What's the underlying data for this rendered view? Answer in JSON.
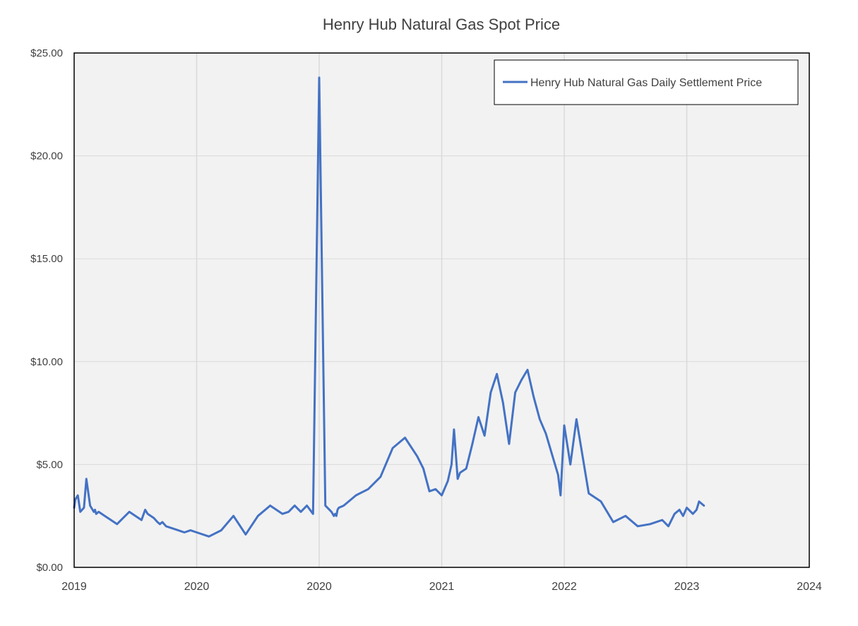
{
  "chart_data": {
    "type": "line",
    "title": "Henry Hub Natural Gas Spot Price",
    "xlabel": "",
    "ylabel": "",
    "xlim": [
      "2019",
      "2024"
    ],
    "ylim": [
      0,
      25
    ],
    "y_ticks": [
      "$0.00",
      "$5.00",
      "$10.00",
      "$15.00",
      "$20.00",
      "$25.00"
    ],
    "x_ticks": [
      "2019",
      "2020",
      "2020",
      "2021",
      "2022",
      "2023",
      "2024"
    ],
    "grid": "vertical and horizontal",
    "legend_position": "top-right",
    "colors": {
      "series": "#4472c4",
      "plot_bg": "#f2f2f2",
      "grid": "#d9d9d9"
    },
    "series": [
      {
        "name": "Henry Hub Natural Gas Daily Settlement Price",
        "x": [
          0.0,
          0.01,
          0.03,
          0.05,
          0.08,
          0.1,
          0.13,
          0.16,
          0.17,
          0.18,
          0.2,
          0.25,
          0.3,
          0.35,
          0.4,
          0.45,
          0.5,
          0.55,
          0.58,
          0.6,
          0.65,
          0.68,
          0.7,
          0.72,
          0.75,
          0.8,
          0.85,
          0.9,
          0.95,
          1.0,
          1.1,
          1.2,
          1.3,
          1.4,
          1.5,
          1.6,
          1.7,
          1.75,
          1.8,
          1.85,
          1.9,
          1.95,
          2.0,
          2.05,
          2.1,
          2.12,
          2.13,
          2.14,
          2.15,
          2.16,
          2.2,
          2.3,
          2.4,
          2.5,
          2.6,
          2.7,
          2.8,
          2.85,
          2.9,
          2.95,
          3.0,
          3.05,
          3.08,
          3.1,
          3.13,
          3.15,
          3.2,
          3.25,
          3.3,
          3.35,
          3.4,
          3.45,
          3.5,
          3.55,
          3.6,
          3.65,
          3.7,
          3.75,
          3.8,
          3.85,
          3.9,
          3.95,
          3.97,
          4.0,
          4.05,
          4.1,
          4.2,
          4.3,
          4.4,
          4.5,
          4.6,
          4.7,
          4.8,
          4.85,
          4.9,
          4.94,
          4.95,
          4.96,
          4.97,
          5.0,
          5.05,
          5.08,
          5.1,
          5.14
        ],
        "values": [
          2.9,
          3.3,
          3.5,
          2.7,
          2.9,
          4.3,
          3.0,
          2.7,
          2.8,
          2.6,
          2.7,
          2.5,
          2.3,
          2.1,
          2.4,
          2.7,
          2.5,
          2.3,
          2.8,
          2.6,
          2.4,
          2.2,
          2.1,
          2.2,
          2.0,
          1.9,
          1.8,
          1.7,
          1.8,
          1.7,
          1.5,
          1.8,
          2.5,
          1.6,
          2.5,
          3.0,
          2.6,
          2.7,
          3.0,
          2.7,
          3.0,
          2.6,
          23.8,
          3.0,
          2.7,
          2.5,
          2.6,
          2.5,
          2.8,
          2.9,
          3.0,
          3.5,
          3.8,
          4.4,
          5.8,
          6.3,
          5.4,
          4.8,
          3.7,
          3.8,
          3.5,
          4.2,
          5.0,
          6.7,
          4.3,
          4.6,
          4.8,
          6.0,
          7.3,
          6.4,
          8.5,
          9.4,
          8.0,
          6.0,
          8.5,
          9.1,
          9.6,
          8.3,
          7.2,
          6.5,
          5.5,
          4.5,
          3.5,
          6.9,
          5.0,
          7.2,
          3.6,
          3.2,
          2.2,
          2.5,
          2.0,
          2.1,
          2.3,
          2.0,
          2.6,
          2.8,
          2.7,
          2.6,
          2.5,
          2.9,
          2.6,
          2.8,
          3.2,
          3.0
        ]
      }
    ]
  }
}
